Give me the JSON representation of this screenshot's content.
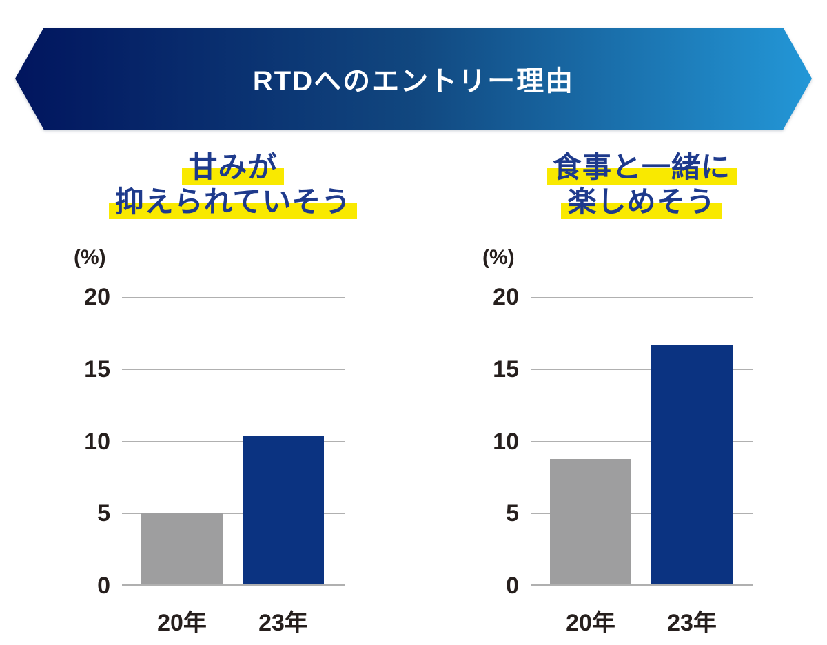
{
  "banner": {
    "title": "RTDへのエントリー理由",
    "gradient_left": "#01155e",
    "gradient_mid": "#11477f",
    "gradient_right": "#2397d7"
  },
  "colors": {
    "title_navy": "#1e3a8c",
    "highlight_yellow": "#f9e900",
    "bar_gray": "#9e9e9f",
    "bar_navy": "#0b3381",
    "grid_gray": "#b0b0b0",
    "axis_text": "#261f1d"
  },
  "chart_data": [
    {
      "type": "bar",
      "title_lines": [
        "甘みが",
        "抑えられていそう"
      ],
      "unit_label": "(%)",
      "categories": [
        "20年",
        "23年"
      ],
      "values": [
        5.0,
        10.4
      ],
      "bar_colors": [
        "#9e9e9f",
        "#0b3381"
      ],
      "yticks": [
        20,
        15,
        10,
        5,
        0
      ],
      "ylim": [
        0,
        20
      ],
      "grid": true,
      "legend": "none"
    },
    {
      "type": "bar",
      "title_lines": [
        "食事と一緒に",
        "楽しめそう"
      ],
      "unit_label": "(%)",
      "categories": [
        "20年",
        "23年"
      ],
      "values": [
        8.8,
        16.7
      ],
      "bar_colors": [
        "#9e9e9f",
        "#0b3381"
      ],
      "yticks": [
        20,
        15,
        10,
        5,
        0
      ],
      "ylim": [
        0,
        20
      ],
      "grid": true,
      "legend": "none"
    }
  ]
}
